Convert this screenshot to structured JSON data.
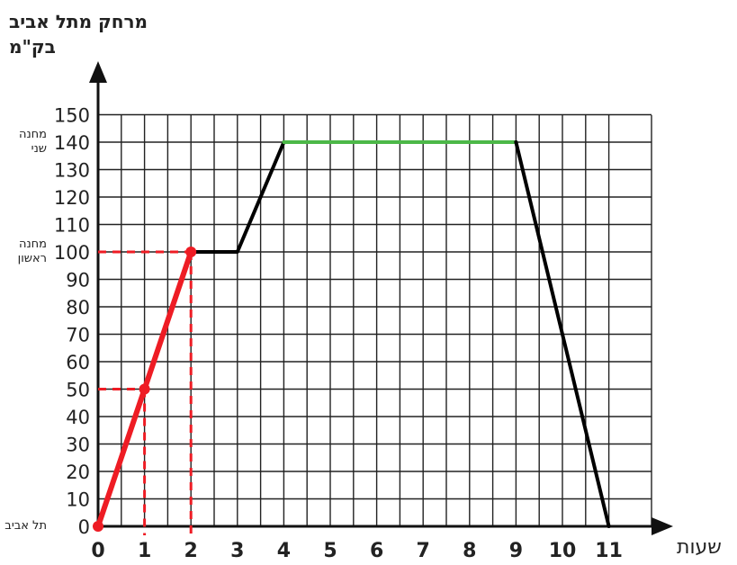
{
  "chart_data": {
    "type": "line",
    "ylabel": [
      "מרחק מתל אביב",
      "בק\"מ"
    ],
    "xlabel": "שעות",
    "xlim": [
      0,
      11
    ],
    "ylim": [
      0,
      150
    ],
    "x_ticks": [
      0,
      1,
      2,
      3,
      4,
      5,
      6,
      7,
      8,
      9,
      10,
      11
    ],
    "y_ticks": [
      0,
      10,
      20,
      30,
      40,
      50,
      60,
      70,
      80,
      90,
      100,
      110,
      120,
      130,
      140,
      150
    ],
    "grid": true,
    "station_labels": [
      {
        "y": 140,
        "lines": [
          "מחנה",
          "שני"
        ]
      },
      {
        "y": 100,
        "lines": [
          "מחנה",
          "ראשון"
        ]
      },
      {
        "y": 0,
        "lines": [
          "תל אביב"
        ]
      }
    ],
    "series": [
      {
        "color": "#ee1c24",
        "x": [
          0,
          1,
          2
        ],
        "y": [
          0,
          50,
          100
        ],
        "markers": true
      },
      {
        "color": "#000000",
        "x": [
          2,
          3,
          4
        ],
        "y": [
          100,
          100,
          140
        ]
      },
      {
        "color": "#4cb848",
        "x": [
          4,
          9
        ],
        "y": [
          140,
          140
        ]
      },
      {
        "color": "#000000",
        "x": [
          9,
          11
        ],
        "y": [
          140,
          0
        ]
      }
    ],
    "guides": {
      "color": "#ee1c24",
      "style": "dashed",
      "points": [
        {
          "x": 1,
          "y": 50
        },
        {
          "x": 2,
          "y": 100
        }
      ]
    }
  }
}
